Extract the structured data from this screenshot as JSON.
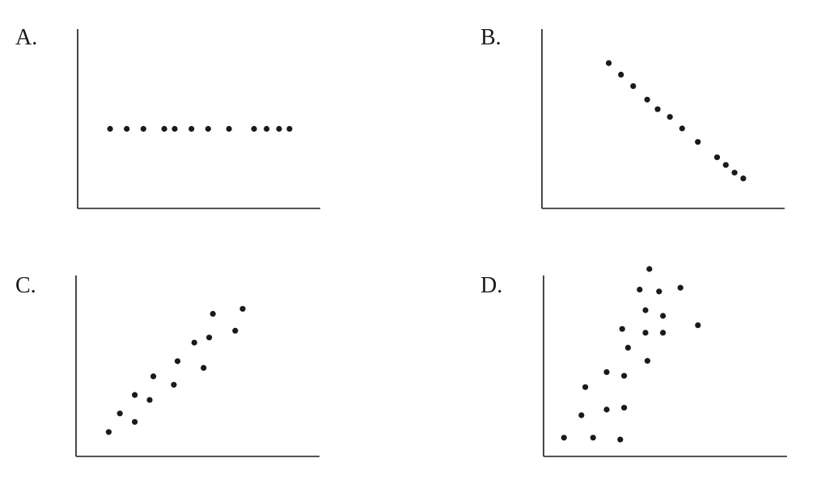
{
  "colors": {
    "ink": "#1a1a1a",
    "background": "#ffffff"
  },
  "chart_data": [
    {
      "type": "scatter",
      "label": "A.",
      "xlim": [
        0,
        10
      ],
      "ylim": [
        0,
        10
      ],
      "points": [
        [
          0.7,
          5.0
        ],
        [
          1.5,
          5.0
        ],
        [
          2.3,
          5.0
        ],
        [
          3.3,
          5.0
        ],
        [
          3.8,
          5.0
        ],
        [
          4.6,
          5.0
        ],
        [
          5.4,
          5.0
        ],
        [
          6.4,
          5.0
        ],
        [
          7.6,
          5.0
        ],
        [
          8.2,
          5.0
        ],
        [
          8.8,
          5.0
        ],
        [
          9.3,
          5.0
        ]
      ]
    },
    {
      "type": "scatter",
      "label": "B.",
      "xlim": [
        0,
        10
      ],
      "ylim": [
        0,
        10
      ],
      "points": [
        [
          1.6,
          8.4
        ],
        [
          2.3,
          7.8
        ],
        [
          3.0,
          7.2
        ],
        [
          3.8,
          6.5
        ],
        [
          4.4,
          6.0
        ],
        [
          5.1,
          5.6
        ],
        [
          5.8,
          5.0
        ],
        [
          6.7,
          4.3
        ],
        [
          7.8,
          3.5
        ],
        [
          8.3,
          3.1
        ],
        [
          8.8,
          2.7
        ],
        [
          9.3,
          2.4
        ]
      ]
    },
    {
      "type": "scatter",
      "label": "C.",
      "xlim": [
        0,
        10
      ],
      "ylim": [
        0,
        10
      ],
      "points": [
        [
          0.8,
          1.3
        ],
        [
          1.4,
          2.4
        ],
        [
          2.2,
          3.5
        ],
        [
          2.2,
          1.9
        ],
        [
          3.0,
          3.2
        ],
        [
          3.2,
          4.6
        ],
        [
          4.3,
          4.1
        ],
        [
          4.5,
          5.5
        ],
        [
          5.4,
          6.6
        ],
        [
          5.9,
          5.1
        ],
        [
          6.2,
          6.9
        ],
        [
          7.6,
          7.3
        ],
        [
          6.4,
          8.3
        ],
        [
          8.0,
          8.6
        ]
      ]
    },
    {
      "type": "scatter",
      "label": "D.",
      "xlim": [
        0,
        10
      ],
      "ylim": [
        0,
        10
      ],
      "points": [
        [
          0.8,
          1.0
        ],
        [
          1.7,
          2.2
        ],
        [
          1.9,
          3.7
        ],
        [
          2.3,
          1.0
        ],
        [
          3.0,
          2.5
        ],
        [
          3.0,
          4.5
        ],
        [
          3.7,
          0.9
        ],
        [
          3.8,
          6.8
        ],
        [
          3.9,
          4.3
        ],
        [
          3.9,
          2.6
        ],
        [
          4.1,
          5.8
        ],
        [
          4.7,
          8.9
        ],
        [
          5.0,
          7.8
        ],
        [
          5.0,
          6.6
        ],
        [
          5.1,
          5.1
        ],
        [
          5.2,
          10.0
        ],
        [
          5.7,
          8.8
        ],
        [
          5.9,
          7.5
        ],
        [
          5.9,
          6.6
        ],
        [
          6.8,
          9.0
        ],
        [
          7.7,
          7.0
        ]
      ]
    }
  ]
}
